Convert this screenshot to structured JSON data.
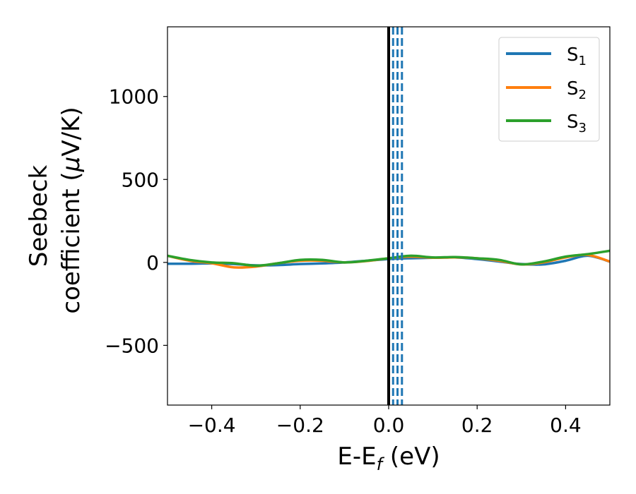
{
  "chart_data": {
    "type": "line",
    "xlabel": {
      "main": "E-E",
      "sub": "f",
      "unit": " (eV)"
    },
    "ylabel": {
      "line1": "Seebeck",
      "line2_prefix": "coefficient  (",
      "mu": "μ",
      "line2_suffix": "V/K)"
    },
    "xlim": [
      -0.5,
      0.5
    ],
    "ylim": [
      -860,
      1420
    ],
    "xticks": [
      -0.4,
      -0.2,
      0.0,
      0.2,
      0.4
    ],
    "xtick_labels": [
      "−0.4",
      "−0.2",
      "0.0",
      "0.2",
      "0.4"
    ],
    "yticks": [
      -500,
      0,
      500,
      1000
    ],
    "ytick_labels": [
      "−500",
      "0",
      "500",
      "1000"
    ],
    "vertical_line_solid": 0.0,
    "vertical_lines_dashed": [
      0.01,
      0.02,
      0.03
    ],
    "legend": {
      "placement": "top-right"
    },
    "series": [
      {
        "name": "S",
        "sub": "1",
        "color": "#1f77b4",
        "x": [
          -0.5,
          -0.45,
          -0.4,
          -0.35,
          -0.3,
          -0.25,
          -0.2,
          -0.15,
          -0.1,
          -0.05,
          0.0,
          0.05,
          0.1,
          0.15,
          0.2,
          0.25,
          0.3,
          0.35,
          0.4,
          0.45,
          0.5
        ],
        "y": [
          -8,
          -8,
          -6,
          -10,
          -18,
          -16,
          -10,
          -6,
          0,
          10,
          20,
          25,
          28,
          30,
          20,
          5,
          -10,
          -12,
          10,
          40,
          5
        ]
      },
      {
        "name": "S",
        "sub": "2",
        "color": "#ff7f0e",
        "x": [
          -0.5,
          -0.45,
          -0.4,
          -0.35,
          -0.3,
          -0.25,
          -0.2,
          -0.15,
          -0.1,
          -0.05,
          0.0,
          0.05,
          0.1,
          0.15,
          0.2,
          0.25,
          0.3,
          0.35,
          0.4,
          0.45,
          0.5
        ],
        "y": [
          40,
          10,
          -5,
          -30,
          -25,
          -5,
          10,
          10,
          0,
          8,
          25,
          35,
          28,
          30,
          25,
          10,
          -12,
          0,
          30,
          45,
          5
        ]
      },
      {
        "name": "S",
        "sub": "3",
        "color": "#2ca02c",
        "x": [
          -0.5,
          -0.45,
          -0.4,
          -0.35,
          -0.3,
          -0.25,
          -0.2,
          -0.15,
          -0.1,
          -0.05,
          0.0,
          0.05,
          0.1,
          0.15,
          0.2,
          0.25,
          0.3,
          0.35,
          0.4,
          0.45,
          0.5
        ],
        "y": [
          40,
          15,
          0,
          -5,
          -20,
          -5,
          15,
          15,
          0,
          10,
          25,
          40,
          30,
          32,
          25,
          15,
          -12,
          5,
          35,
          50,
          70
        ]
      }
    ]
  }
}
